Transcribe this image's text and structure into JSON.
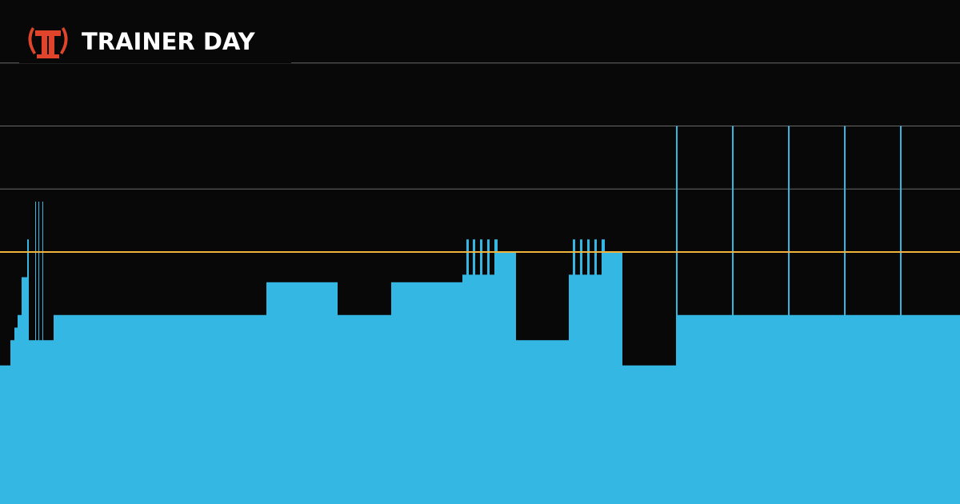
{
  "brand": "TRAINER DAY",
  "chart_data": {
    "type": "histogram",
    "bins": [
      0,
      1.3,
      1.8,
      2.2,
      2.7,
      3.4,
      3.6,
      4.4,
      4.5,
      4.8,
      4.9,
      5.3,
      5.4,
      6.7,
      33.3,
      42.2,
      48.9,
      57.8,
      58.3,
      58.6,
      59.1,
      59.4,
      60.0,
      60.3,
      60.9,
      61.2,
      61.8,
      62.2,
      64.5,
      71.1,
      71.6,
      71.9,
      72.5,
      72.8,
      73.4,
      73.7,
      74.3,
      74.6,
      75.2,
      75.6,
      77.8,
      84.5,
      84.7,
      91.5,
      91.7,
      98.5,
      98.7,
      105.5,
      105.7,
      112.5,
      112.7,
      120
    ],
    "values": [
      55,
      65,
      70,
      75,
      90,
      105,
      65,
      120,
      65,
      120,
      65,
      120,
      65,
      75,
      88,
      75,
      88,
      91,
      105,
      91,
      105,
      91,
      105,
      91,
      105,
      91,
      105,
      100,
      65,
      91,
      105,
      91,
      105,
      91,
      105,
      91,
      105,
      91,
      105,
      100,
      55,
      150,
      75,
      150,
      75,
      150,
      75,
      150,
      75,
      150,
      75
    ],
    "color": "#35b7e4",
    "xlim": [
      0,
      120
    ],
    "ylim": [
      0,
      200
    ],
    "yticks": [
      125,
      150,
      175
    ],
    "grid": true,
    "ftp_line": 100,
    "ftp_color": "#f0b43c"
  }
}
